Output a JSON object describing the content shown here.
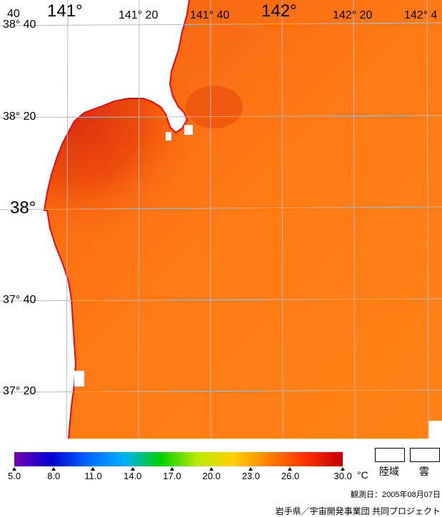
{
  "map": {
    "top_labels": [
      "141°",
      "141° 20",
      "141° 40",
      "142°",
      "142° 20",
      "142° 4"
    ],
    "top_left_fragment": "40",
    "left_labels": [
      "38° 40",
      "38° 20",
      "38°",
      "37° 40",
      "37° 20"
    ],
    "colors": {
      "sea": "#ff7a12",
      "sea_warm": "#ee4d0c",
      "sea_hot": "#d9300e",
      "land": "#ffffff",
      "coast": "#ff0000",
      "grid": "#b8b8b8"
    }
  },
  "colorbar": {
    "stops": [
      "#7700b0",
      "#0000d0",
      "#0066ff",
      "#00b0ff",
      "#00d000",
      "#b8e800",
      "#ffd000",
      "#ff8000",
      "#ff3000",
      "#c00000"
    ],
    "ticks": [
      "5.0",
      "8.0",
      "11.0",
      "14.0",
      "17.0",
      "20.0",
      "23.0",
      "26.0",
      "30.0"
    ],
    "tick_values": [
      5,
      8,
      11,
      14,
      17,
      20,
      23,
      26,
      30
    ],
    "range": [
      5,
      30
    ],
    "unit": "°C"
  },
  "legend": {
    "land_label": "陸域",
    "cloud_label": "雲"
  },
  "footer": {
    "observation_date": "観測日：2005年08月07日",
    "credit": "岩手県／宇宙開発事業団 共同プロジェクト"
  }
}
